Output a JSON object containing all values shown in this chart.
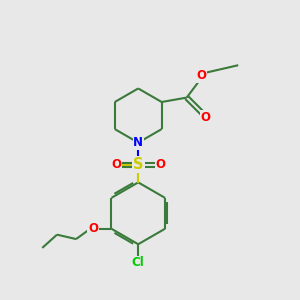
{
  "bg_color": "#e8e8e8",
  "bond_color": "#3a7a3a",
  "n_color": "#0000ff",
  "o_color": "#ff0000",
  "s_color": "#cccc00",
  "cl_color": "#00cc00",
  "lw": 1.5,
  "fs": 8.5,
  "xlim": [
    0,
    10
  ],
  "ylim": [
    0,
    10
  ]
}
